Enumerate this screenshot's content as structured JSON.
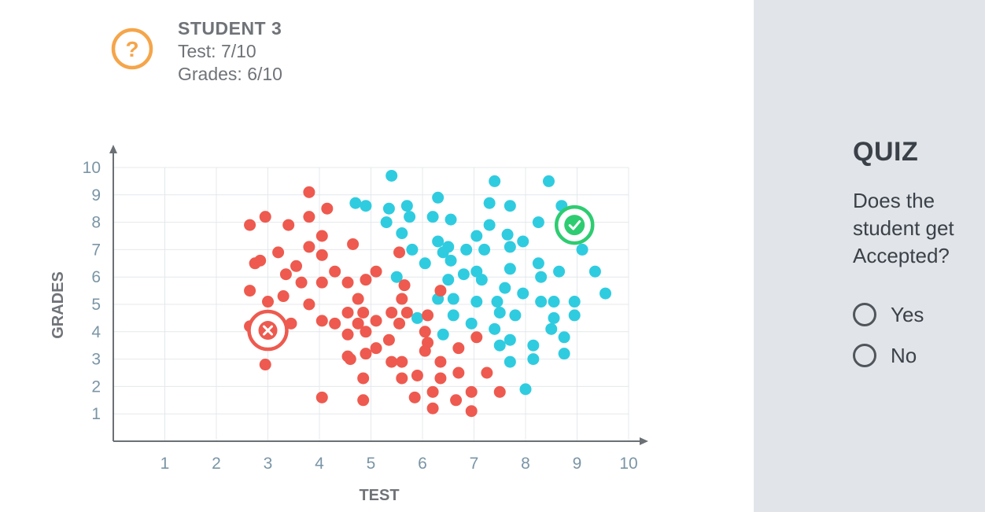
{
  "student": {
    "title": "STUDENT 3",
    "test_line": "Test: 7/10",
    "grades_line": "Grades: 6/10",
    "icon": "question-icon",
    "icon_color": "#f5a54a"
  },
  "quiz": {
    "title": "QUIZ",
    "question": "Does the student get Accepted?",
    "options": [
      {
        "label": "Yes",
        "selected": false
      },
      {
        "label": "No",
        "selected": false
      }
    ]
  },
  "colors": {
    "accepted": "#2fcce0",
    "rejected": "#ee5a4f",
    "accepted_marker": "#2ecc71",
    "rejected_marker": "#ee5a4f",
    "axis": "#6b7075",
    "tick_label": "#7a95a6",
    "grid": "#e4e8ec"
  },
  "chart_data": {
    "type": "scatter",
    "xlabel": "TEST",
    "ylabel": "GRADES",
    "xlim": [
      0,
      10
    ],
    "ylim": [
      0,
      10
    ],
    "x_ticks": [
      "1",
      "2",
      "3",
      "4",
      "5",
      "6",
      "7",
      "8",
      "9",
      "10"
    ],
    "y_ticks": [
      "1",
      "2",
      "3",
      "4",
      "5",
      "6",
      "7",
      "8",
      "9",
      "10"
    ],
    "grid": true,
    "series": [
      {
        "category": "accepted",
        "points": [
          [
            4.7,
            8.7
          ],
          [
            4.9,
            8.6
          ],
          [
            5.4,
            9.7
          ],
          [
            5.35,
            8.5
          ],
          [
            5.3,
            8.0
          ],
          [
            5.6,
            7.6
          ],
          [
            5.7,
            8.6
          ],
          [
            5.75,
            8.2
          ],
          [
            5.8,
            7.0
          ],
          [
            5.5,
            6.0
          ],
          [
            6.05,
            6.5
          ],
          [
            6.2,
            8.2
          ],
          [
            6.3,
            7.3
          ],
          [
            6.3,
            8.9
          ],
          [
            6.4,
            6.9
          ],
          [
            6.5,
            7.1
          ],
          [
            6.5,
            5.9
          ],
          [
            6.55,
            8.1
          ],
          [
            6.55,
            6.6
          ],
          [
            6.6,
            5.2
          ],
          [
            6.6,
            4.6
          ],
          [
            6.4,
            3.9
          ],
          [
            6.3,
            5.2
          ],
          [
            5.9,
            4.5
          ],
          [
            6.8,
            6.1
          ],
          [
            6.85,
            7.0
          ],
          [
            6.95,
            4.3
          ],
          [
            7.05,
            7.5
          ],
          [
            7.05,
            6.2
          ],
          [
            7.05,
            5.1
          ],
          [
            7.15,
            5.9
          ],
          [
            7.2,
            7.0
          ],
          [
            7.3,
            8.7
          ],
          [
            7.3,
            7.9
          ],
          [
            7.4,
            9.5
          ],
          [
            7.4,
            4.1
          ],
          [
            7.45,
            5.1
          ],
          [
            7.5,
            4.7
          ],
          [
            7.5,
            3.5
          ],
          [
            7.6,
            5.6
          ],
          [
            7.65,
            7.55
          ],
          [
            7.7,
            8.6
          ],
          [
            7.7,
            7.1
          ],
          [
            7.7,
            6.3
          ],
          [
            7.7,
            3.7
          ],
          [
            7.7,
            2.9
          ],
          [
            7.8,
            4.6
          ],
          [
            7.95,
            7.3
          ],
          [
            7.95,
            5.4
          ],
          [
            8.0,
            1.9
          ],
          [
            8.15,
            3.5
          ],
          [
            8.15,
            3.0
          ],
          [
            8.25,
            8.0
          ],
          [
            8.25,
            6.5
          ],
          [
            8.3,
            6.0
          ],
          [
            8.3,
            5.1
          ],
          [
            8.45,
            9.5
          ],
          [
            8.5,
            4.1
          ],
          [
            8.55,
            5.1
          ],
          [
            8.55,
            4.5
          ],
          [
            8.65,
            6.2
          ],
          [
            8.7,
            8.6
          ],
          [
            8.75,
            3.8
          ],
          [
            8.75,
            3.2
          ],
          [
            8.95,
            5.1
          ],
          [
            8.95,
            4.6
          ],
          [
            9.1,
            7.0
          ],
          [
            9.35,
            6.2
          ],
          [
            9.55,
            5.4
          ]
        ]
      },
      {
        "category": "rejected",
        "points": [
          [
            2.65,
            7.9
          ],
          [
            2.65,
            5.5
          ],
          [
            2.75,
            6.5
          ],
          [
            2.85,
            6.6
          ],
          [
            2.65,
            4.2
          ],
          [
            2.95,
            8.2
          ],
          [
            3.0,
            5.1
          ],
          [
            2.95,
            2.8
          ],
          [
            3.2,
            6.9
          ],
          [
            3.3,
            5.3
          ],
          [
            3.35,
            6.1
          ],
          [
            3.4,
            7.9
          ],
          [
            3.45,
            4.3
          ],
          [
            3.55,
            6.4
          ],
          [
            3.65,
            5.8
          ],
          [
            3.8,
            9.1
          ],
          [
            3.8,
            8.2
          ],
          [
            3.8,
            7.1
          ],
          [
            3.8,
            5.0
          ],
          [
            4.05,
            7.5
          ],
          [
            4.05,
            6.8
          ],
          [
            4.05,
            5.8
          ],
          [
            4.05,
            4.4
          ],
          [
            4.05,
            1.6
          ],
          [
            4.15,
            8.5
          ],
          [
            4.3,
            6.2
          ],
          [
            4.3,
            4.3
          ],
          [
            4.55,
            5.8
          ],
          [
            4.55,
            4.7
          ],
          [
            4.55,
            3.9
          ],
          [
            4.55,
            3.1
          ],
          [
            4.6,
            3.0
          ],
          [
            4.65,
            7.2
          ],
          [
            4.75,
            5.2
          ],
          [
            4.75,
            4.3
          ],
          [
            4.85,
            4.7
          ],
          [
            4.85,
            2.3
          ],
          [
            4.85,
            1.5
          ],
          [
            4.9,
            5.9
          ],
          [
            4.9,
            4.0
          ],
          [
            4.9,
            3.2
          ],
          [
            5.1,
            6.2
          ],
          [
            5.1,
            4.4
          ],
          [
            5.1,
            3.4
          ],
          [
            5.35,
            3.7
          ],
          [
            5.4,
            4.7
          ],
          [
            5.4,
            2.9
          ],
          [
            5.55,
            6.9
          ],
          [
            5.55,
            4.3
          ],
          [
            5.6,
            5.2
          ],
          [
            5.65,
            5.7
          ],
          [
            5.6,
            2.9
          ],
          [
            5.6,
            2.3
          ],
          [
            5.7,
            4.7
          ],
          [
            5.85,
            1.6
          ],
          [
            5.9,
            2.4
          ],
          [
            6.05,
            4.0
          ],
          [
            6.05,
            3.3
          ],
          [
            6.1,
            4.6
          ],
          [
            6.1,
            3.6
          ],
          [
            6.2,
            1.8
          ],
          [
            6.2,
            1.2
          ],
          [
            6.35,
            5.5
          ],
          [
            6.35,
            2.9
          ],
          [
            6.35,
            2.3
          ],
          [
            6.65,
            1.5
          ],
          [
            6.7,
            3.4
          ],
          [
            6.7,
            2.5
          ],
          [
            6.95,
            1.1
          ],
          [
            6.95,
            1.8
          ],
          [
            7.05,
            3.8
          ],
          [
            7.25,
            2.5
          ],
          [
            7.5,
            1.8
          ]
        ]
      }
    ],
    "markers": [
      {
        "kind": "rejected",
        "x": 3.0,
        "y": 4.05
      },
      {
        "kind": "accepted",
        "x": 8.95,
        "y": 7.9
      }
    ]
  }
}
